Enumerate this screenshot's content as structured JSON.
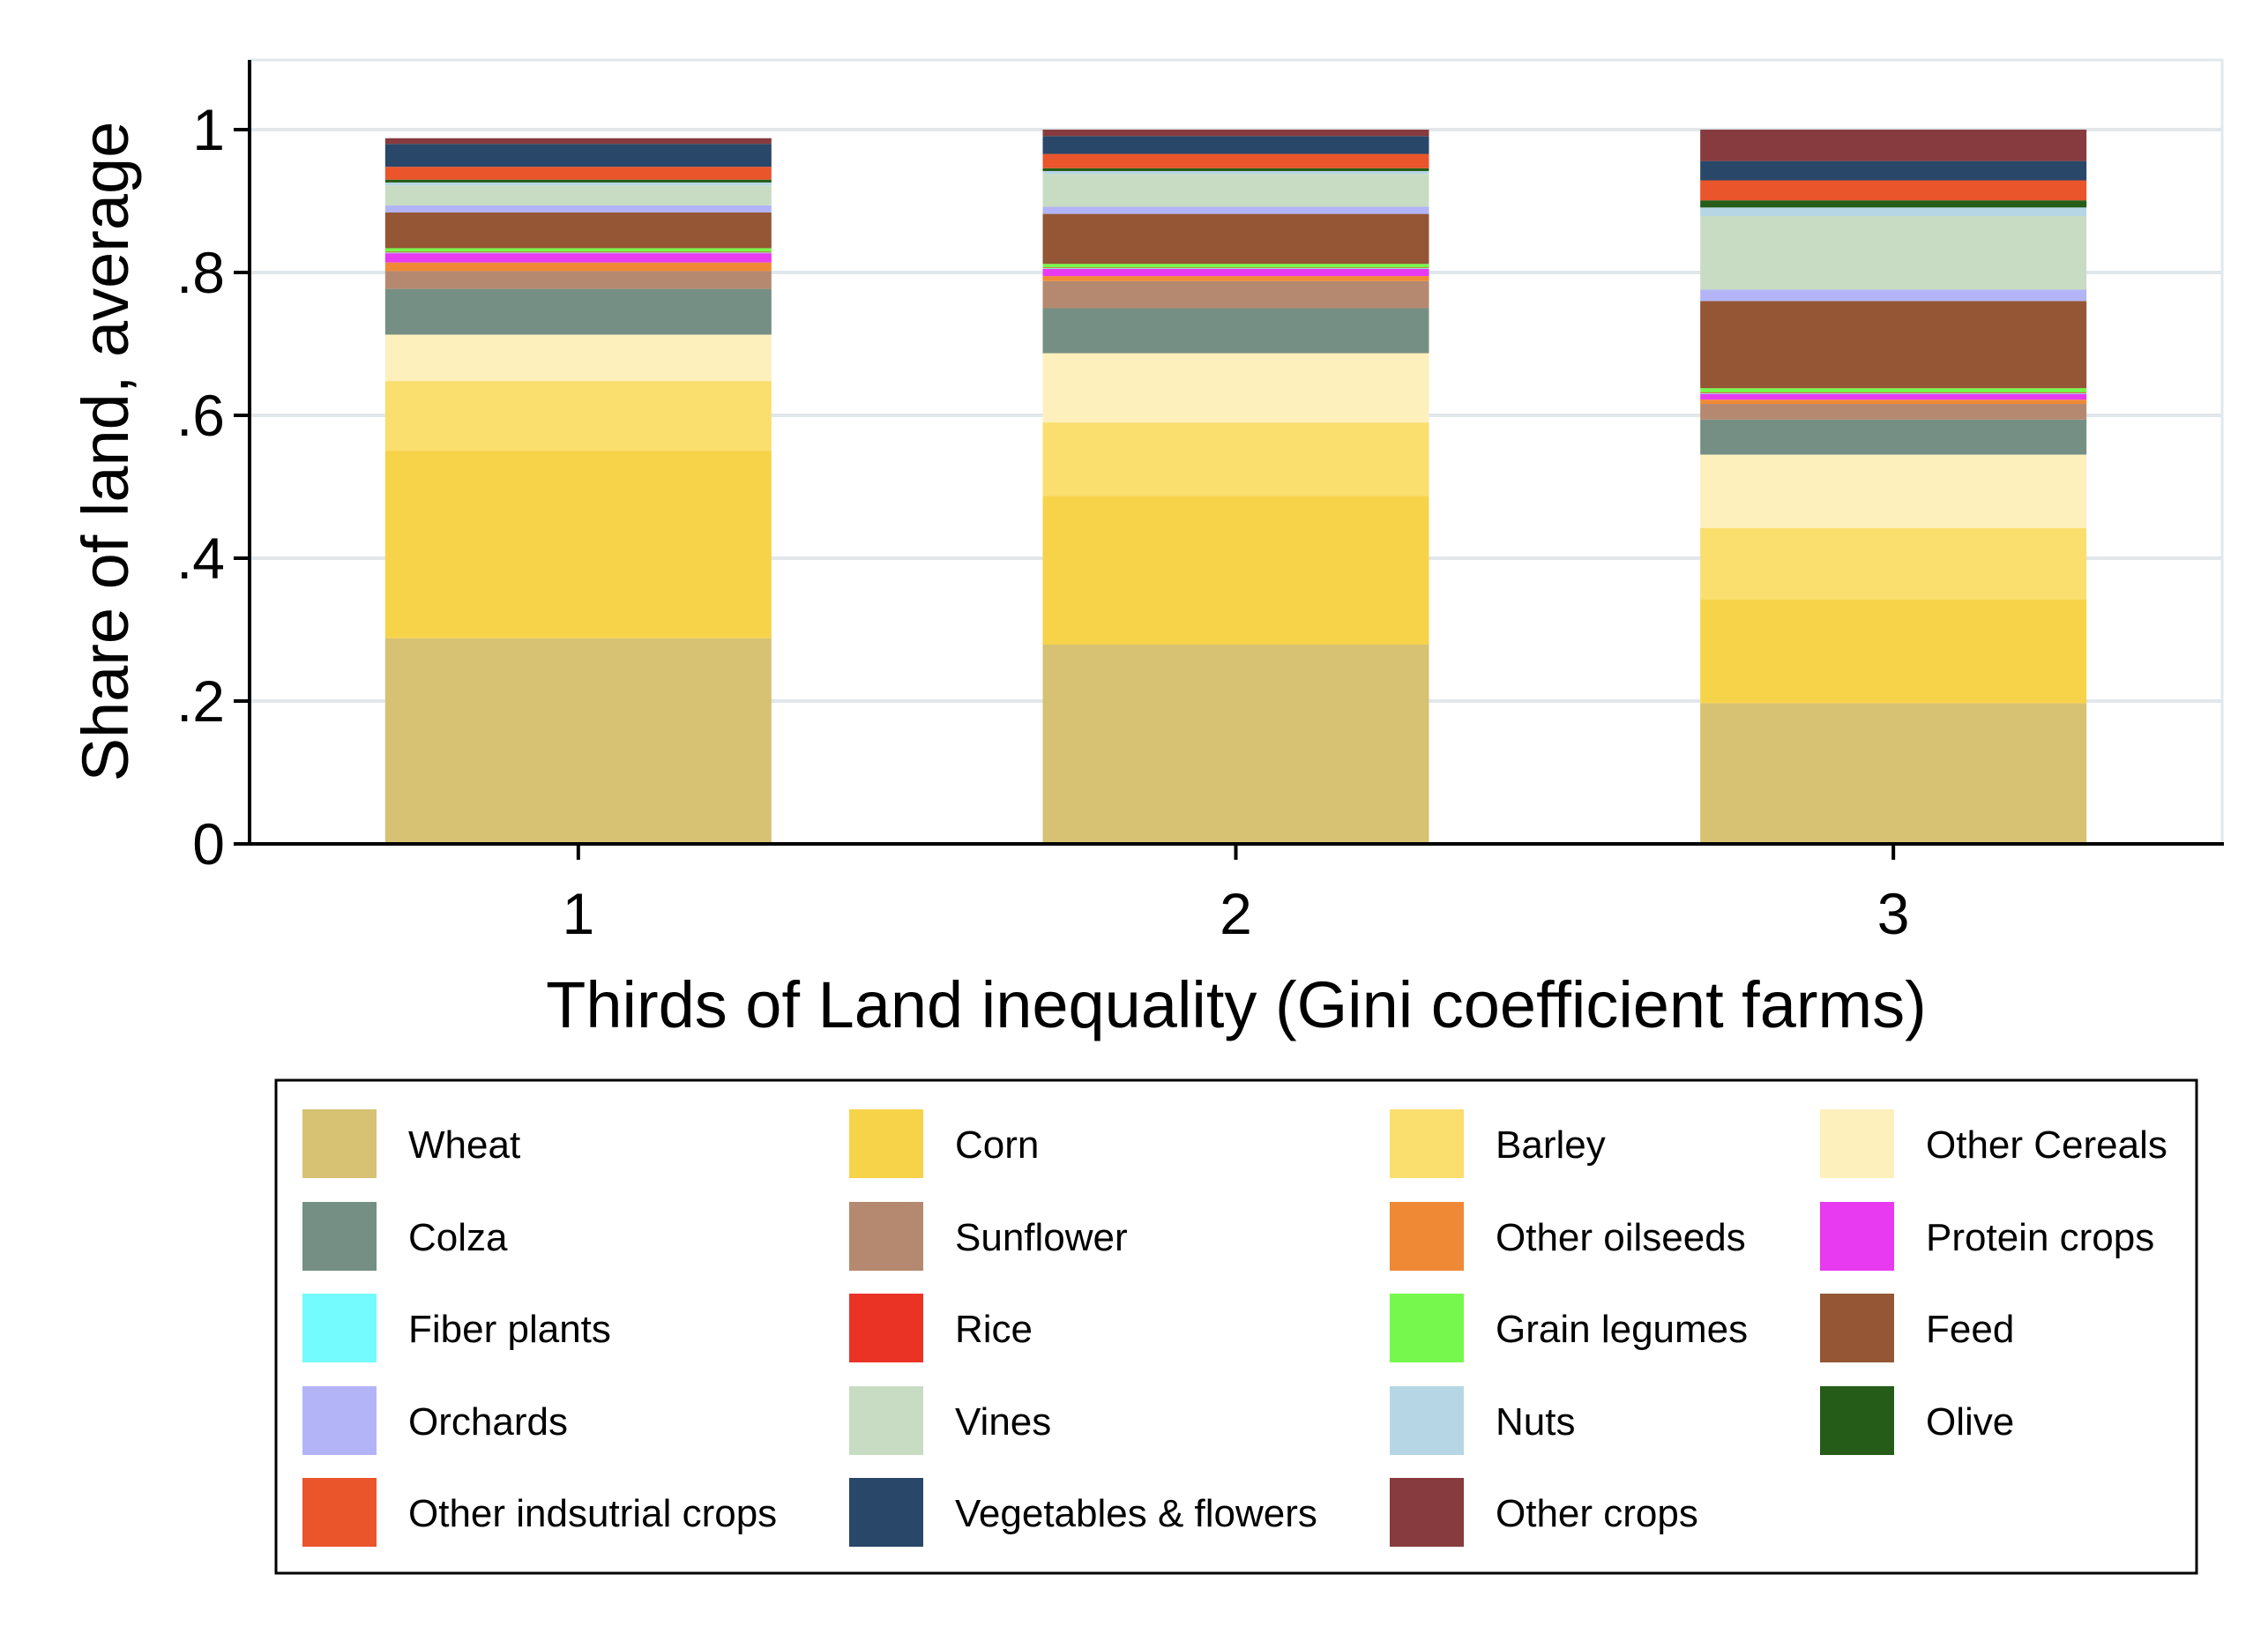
{
  "chart_data": {
    "type": "bar",
    "stacked": true,
    "title": "",
    "xlabel": "Thirds of Land inequality (Gini coefficient farms)",
    "ylabel": "Share of land, average",
    "ylim": [
      0,
      1.1
    ],
    "yticks": [
      {
        "value": 0,
        "label": "0"
      },
      {
        "value": 0.2,
        "label": ".2"
      },
      {
        "value": 0.4,
        "label": ".4"
      },
      {
        "value": 0.6,
        "label": ".6"
      },
      {
        "value": 0.8,
        "label": ".8"
      },
      {
        "value": 1,
        "label": "1"
      }
    ],
    "grid": true,
    "legend_position": "bottom",
    "categories": [
      "1",
      "2",
      "3"
    ],
    "series": [
      {
        "name": "Wheat",
        "color": "#D6C272",
        "values": [
          0.288,
          0.279,
          0.197
        ]
      },
      {
        "name": "Corn",
        "color": "#F7D34A",
        "values": [
          0.262,
          0.208,
          0.145
        ]
      },
      {
        "name": "Barley",
        "color": "#FADE6E",
        "values": [
          0.098,
          0.103,
          0.1
        ]
      },
      {
        "name": "Other Cereals",
        "color": "#FDF0BC",
        "values": [
          0.065,
          0.097,
          0.103
        ]
      },
      {
        "name": "Colza",
        "color": "#758F84",
        "values": [
          0.064,
          0.063,
          0.049
        ]
      },
      {
        "name": "Sunflower",
        "color": "#B5896F",
        "values": [
          0.025,
          0.038,
          0.022
        ]
      },
      {
        "name": "Other oilseeds",
        "color": "#F08935",
        "values": [
          0.012,
          0.007,
          0.006
        ]
      },
      {
        "name": "Protein crops",
        "color": "#E83AF0",
        "values": [
          0.013,
          0.01,
          0.008
        ]
      },
      {
        "name": "Fiber plants",
        "color": "#74FBFD",
        "values": [
          0.001,
          0.001,
          0.001
        ]
      },
      {
        "name": "Rice",
        "color": "#EA3325",
        "values": [
          0.001,
          0.001,
          0.001
        ]
      },
      {
        "name": "Grain legumes",
        "color": "#76F94C",
        "values": [
          0.005,
          0.005,
          0.006
        ]
      },
      {
        "name": "Feed",
        "color": "#945635",
        "values": [
          0.05,
          0.07,
          0.122
        ]
      },
      {
        "name": "Orchards",
        "color": "#B3B4F7",
        "values": [
          0.01,
          0.01,
          0.016
        ]
      },
      {
        "name": "Vines",
        "color": "#C8DCC3",
        "values": [
          0.028,
          0.046,
          0.103
        ]
      },
      {
        "name": "Nuts",
        "color": "#B6D6E5",
        "values": [
          0.004,
          0.004,
          0.012
        ]
      },
      {
        "name": "Olive",
        "color": "#255D18",
        "values": [
          0.004,
          0.004,
          0.01
        ]
      },
      {
        "name": "Other indsutrial crops",
        "color": "#EA552C",
        "values": [
          0.018,
          0.02,
          0.028
        ]
      },
      {
        "name": "Vegetables & flowers",
        "color": "#294769",
        "values": [
          0.032,
          0.025,
          0.027
        ]
      },
      {
        "name": "Other crops",
        "color": "#873B3E",
        "values": [
          0.008,
          0.009,
          0.044
        ]
      }
    ],
    "legend_order": [
      "Wheat",
      "Corn",
      "Barley",
      "Other Cereals",
      "Colza",
      "Sunflower",
      "Other oilseeds",
      "Protein crops",
      "Fiber plants",
      "Rice",
      "Grain legumes",
      "Feed",
      "Orchards",
      "Vines",
      "Nuts",
      "Olive",
      "Other indsutrial crops",
      "Vegetables & flowers",
      "Other crops"
    ]
  }
}
